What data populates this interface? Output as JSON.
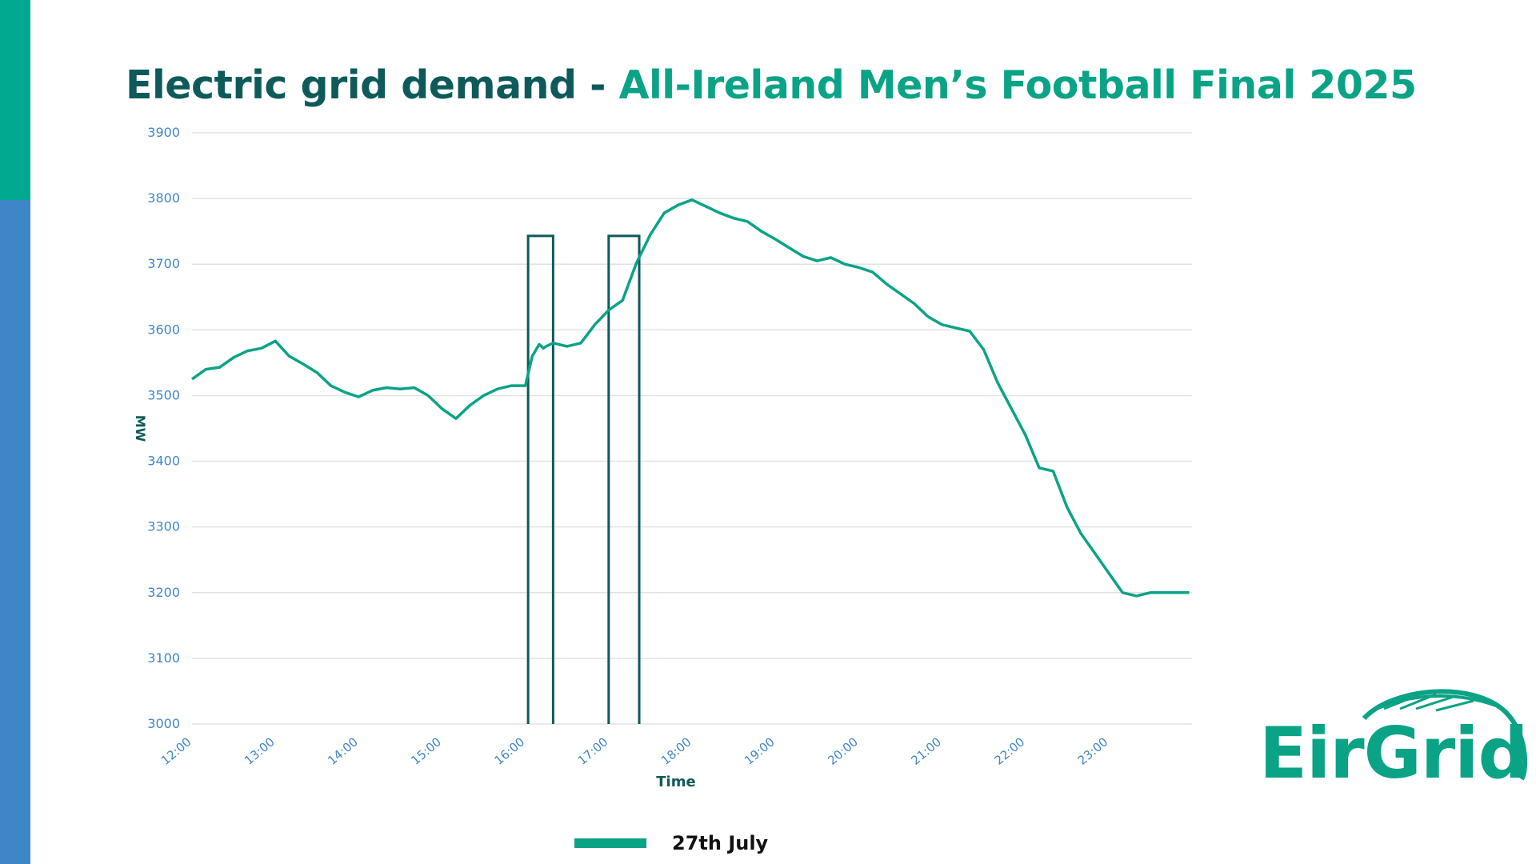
{
  "title": {
    "part1": "Electric grid demand - ",
    "part2": "All-Ireland Men’s Football Final 2025"
  },
  "colors": {
    "dark_teal": "#0e5a5a",
    "green": "#0aa386",
    "accent_top": "#00a98f",
    "accent_bottom": "#3f86c9",
    "tick_blue": "#3f86c9",
    "grid": "#e2e2e2"
  },
  "legend": {
    "label": "27th July"
  },
  "logo": {
    "text": "EirGrid"
  },
  "chart_data": {
    "type": "line",
    "xlabel": "Time",
    "ylabel": "MW",
    "ylim": [
      3000,
      3900
    ],
    "xlim": [
      "12:00",
      "24:00"
    ],
    "yticks": [
      "3000",
      "3100",
      "3200",
      "3300",
      "3400",
      "3500",
      "3600",
      "3700",
      "3800",
      "3900"
    ],
    "xticks": [
      "12:00",
      "13:00",
      "14:00",
      "15:00",
      "16:00",
      "17:00",
      "18:00",
      "19:00",
      "20:00",
      "21:00",
      "22:00",
      "23:00"
    ],
    "grid": true,
    "legend_position": "bottom",
    "highlight_periods": [
      {
        "start": "16:02",
        "end": "16:20",
        "top": 3743
      },
      {
        "start": "17:00",
        "end": "17:22",
        "top": 3743
      }
    ],
    "series": [
      {
        "name": "27th July",
        "x": [
          "12:00",
          "12:10",
          "12:20",
          "12:30",
          "12:40",
          "12:50",
          "13:00",
          "13:10",
          "13:20",
          "13:30",
          "13:40",
          "13:50",
          "14:00",
          "14:10",
          "14:20",
          "14:30",
          "14:40",
          "14:50",
          "15:00",
          "15:10",
          "15:20",
          "15:30",
          "15:40",
          "15:50",
          "16:00",
          "16:05",
          "16:10",
          "16:13",
          "16:15",
          "16:20",
          "16:30",
          "16:40",
          "16:50",
          "17:00",
          "17:10",
          "17:20",
          "17:30",
          "17:40",
          "17:50",
          "18:00",
          "18:10",
          "18:20",
          "18:30",
          "18:40",
          "18:50",
          "19:00",
          "19:10",
          "19:20",
          "19:30",
          "19:40",
          "19:50",
          "20:00",
          "20:10",
          "20:20",
          "20:30",
          "20:40",
          "20:50",
          "21:00",
          "21:10",
          "21:20",
          "21:30",
          "21:40",
          "21:50",
          "22:00",
          "22:10",
          "22:20",
          "22:30",
          "22:40",
          "22:50",
          "23:00",
          "23:10",
          "23:20",
          "23:30",
          "23:40",
          "23:50",
          "23:58"
        ],
        "values": [
          3525,
          3540,
          3543,
          3558,
          3568,
          3572,
          3583,
          3560,
          3548,
          3535,
          3515,
          3505,
          3498,
          3508,
          3512,
          3510,
          3512,
          3500,
          3480,
          3465,
          3485,
          3500,
          3510,
          3515,
          3515,
          3560,
          3578,
          3572,
          3575,
          3580,
          3575,
          3580,
          3608,
          3630,
          3645,
          3702,
          3745,
          3778,
          3790,
          3798,
          3788,
          3778,
          3770,
          3765,
          3750,
          3738,
          3725,
          3712,
          3705,
          3710,
          3700,
          3695,
          3688,
          3670,
          3655,
          3640,
          3620,
          3608,
          3603,
          3598,
          3570,
          3520,
          3480,
          3440,
          3390,
          3385,
          3330,
          3290,
          3260,
          3230,
          3200,
          3195,
          3200,
          3200,
          3200,
          3200
        ]
      }
    ]
  }
}
